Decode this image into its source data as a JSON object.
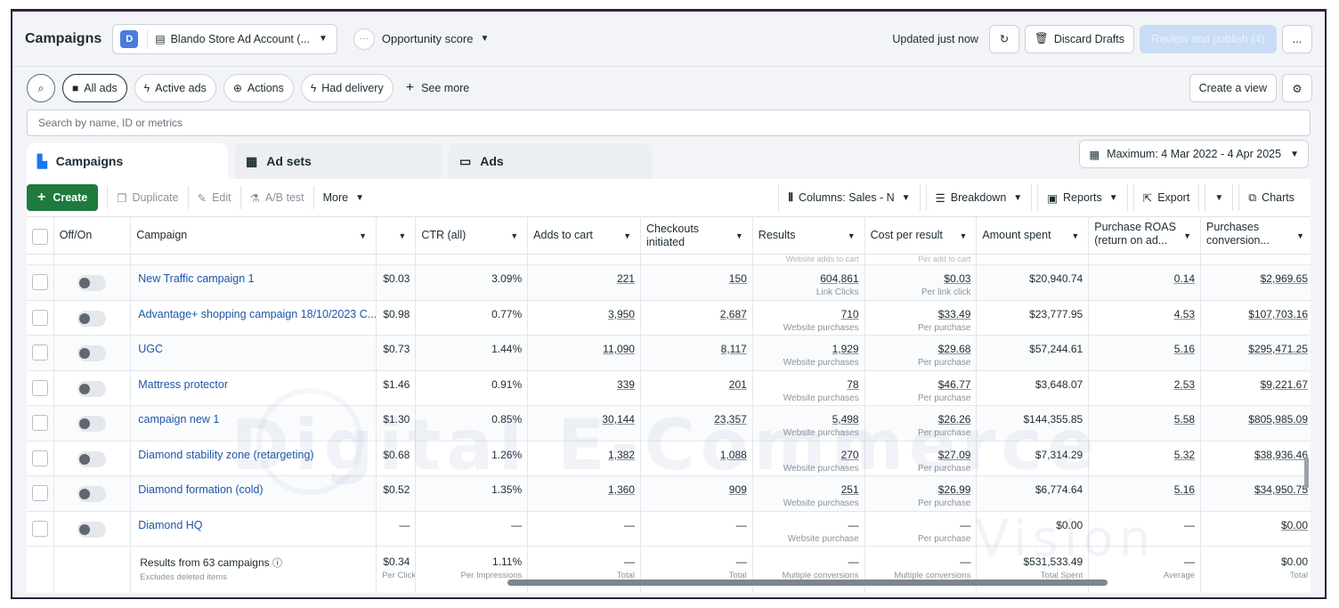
{
  "header": {
    "title": "Campaigns",
    "account_initial": "D",
    "account_name": "Blando Store Ad Account (...",
    "opportunity_label": "Opportunity score",
    "updated_text": "Updated just now",
    "discard_label": "Discard Drafts",
    "publish_label": "Review and publish (4)",
    "more_label": "..."
  },
  "filters": {
    "all_ads": "All ads",
    "active_ads": "Active ads",
    "actions": "Actions",
    "had_delivery": "Had delivery",
    "see_more": "See more",
    "create_view": "Create a view"
  },
  "search": {
    "placeholder": "Search by name, ID or metrics"
  },
  "tabs": [
    {
      "label": "Campaigns"
    },
    {
      "label": "Ad sets"
    },
    {
      "label": "Ads"
    }
  ],
  "date_range": "Maximum: 4 Mar 2022 - 4 Apr 2025",
  "toolbar": {
    "create": "Create",
    "duplicate": "Duplicate",
    "edit": "Edit",
    "ab_test": "A/B test",
    "more": "More",
    "columns": "Columns: Sales - N",
    "breakdown": "Breakdown",
    "reports": "Reports",
    "export": "Export",
    "charts": "Charts"
  },
  "table": {
    "headers": {
      "offon": "Off/On",
      "campaign": "Campaign",
      "ctr": "CTR (all)",
      "adds": "Adds to cart",
      "checkouts": "Checkouts initiated",
      "results": "Results",
      "cpr": "Cost per result",
      "spent": "Amount spent",
      "roas": "Purchase ROAS (return on ad...",
      "conv": "Purchases conversion..."
    },
    "cut_row": {
      "results": "Website adds to cart",
      "cpr": "Per add to cart"
    },
    "rows": [
      {
        "name": "New Traffic campaign 1",
        "cpc": "$0.03",
        "ctr": "3.09%",
        "adds": "221",
        "checkouts": "150",
        "results": "604,861",
        "results_sub": "Link Clicks",
        "cpr": "$0.03",
        "cpr_sub": "Per link click",
        "spent": "$20,940.74",
        "roas": "0.14",
        "conv": "$2,969.65"
      },
      {
        "name": "Advantage+ shopping campaign 18/10/2023 C...",
        "cpc": "$0.98",
        "ctr": "0.77%",
        "adds": "3,950",
        "checkouts": "2,687",
        "results": "710",
        "results_sub": "Website purchases",
        "cpr": "$33.49",
        "cpr_sub": "Per purchase",
        "spent": "$23,777.95",
        "roas": "4.53",
        "conv": "$107,703.16"
      },
      {
        "name": "UGC",
        "cpc": "$0.73",
        "ctr": "1.44%",
        "adds": "11,090",
        "checkouts": "8,117",
        "results": "1,929",
        "results_sub": "Website purchases",
        "cpr": "$29.68",
        "cpr_sub": "Per purchase",
        "spent": "$57,244.61",
        "roas": "5.16",
        "conv": "$295,471.25"
      },
      {
        "name": "Mattress protector",
        "cpc": "$1.46",
        "ctr": "0.91%",
        "adds": "339",
        "checkouts": "201",
        "results": "78",
        "results_sub": "Website purchases",
        "cpr": "$46.77",
        "cpr_sub": "Per purchase",
        "spent": "$3,648.07",
        "roas": "2.53",
        "conv": "$9,221.67"
      },
      {
        "name": "campaign new 1",
        "cpc": "$1.30",
        "ctr": "0.85%",
        "adds": "30,144",
        "checkouts": "23,357",
        "results": "5,498",
        "results_sub": "Website purchases",
        "cpr": "$26.26",
        "cpr_sub": "Per purchase",
        "spent": "$144,355.85",
        "roas": "5.58",
        "conv": "$805,985.09"
      },
      {
        "name": "Diamond stability zone (retargeting)",
        "cpc": "$0.68",
        "ctr": "1.26%",
        "adds": "1,382",
        "checkouts": "1,088",
        "results": "270",
        "results_sub": "Website purchases",
        "cpr": "$27.09",
        "cpr_sub": "Per purchase",
        "spent": "$7,314.29",
        "roas": "5.32",
        "conv": "$38,936.46"
      },
      {
        "name": "Diamond formation (cold)",
        "cpc": "$0.52",
        "ctr": "1.35%",
        "adds": "1,360",
        "checkouts": "909",
        "results": "251",
        "results_sub": "Website purchases",
        "cpr": "$26.99",
        "cpr_sub": "Per purchase",
        "spent": "$6,774.64",
        "roas": "5.16",
        "conv": "$34,950.75"
      },
      {
        "name": "Diamond HQ",
        "cpc": "—",
        "ctr": "—",
        "adds": "—",
        "checkouts": "—",
        "results": "—",
        "results_sub": "Website purchase",
        "cpr": "—",
        "cpr_sub": "Per purchase",
        "spent": "$0.00",
        "roas": "—",
        "conv": "$0.00"
      }
    ],
    "footer": {
      "label": "Results from 63 campaigns",
      "sub": "Excludes deleted items",
      "cpc": "$0.34",
      "cpc_sub": "Per Click",
      "ctr": "1.11%",
      "ctr_sub": "Per Impressions",
      "adds": "—",
      "adds_sub": "Total",
      "checkouts": "—",
      "checkouts_sub": "Total",
      "results": "—",
      "results_sub": "Multiple conversions",
      "cpr": "—",
      "cpr_sub": "Multiple conversions",
      "spent": "$531,533.49",
      "spent_sub": "Total Spent",
      "roas": "—",
      "roas_sub": "Average",
      "conv": "$0.00",
      "conv_sub": "Total"
    }
  },
  "watermark": {
    "line1": "Digital E-Commerce",
    "line2": "Vision"
  },
  "colors": {
    "create_green": "#1e7a3d",
    "link_blue": "#1e56a8",
    "accent_blue": "#1877f2"
  }
}
